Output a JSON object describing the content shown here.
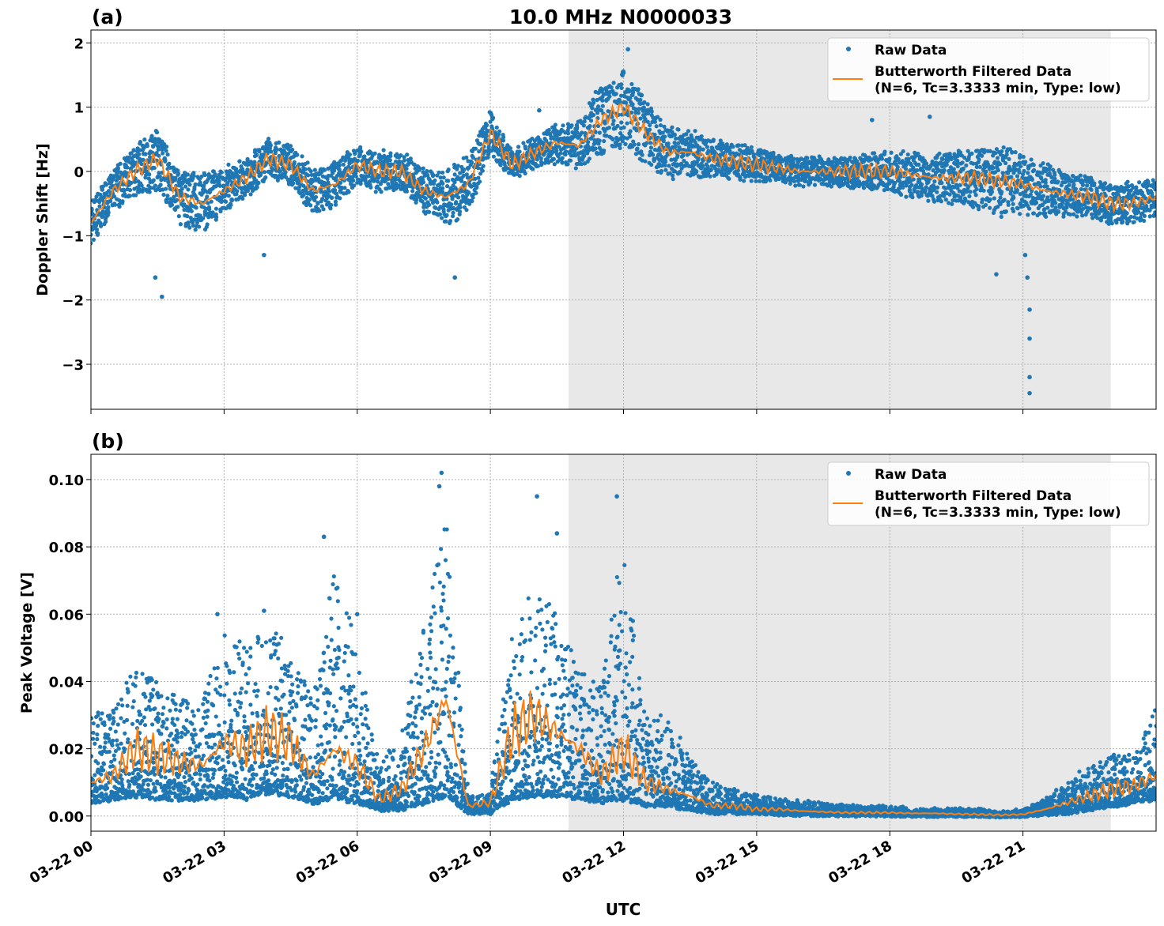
{
  "title": "10.0 MHz N0000033",
  "xlabel": "UTC",
  "x_ticks": [
    "03-22 00",
    "03-22 03",
    "03-22 06",
    "03-22 09",
    "03-22 12",
    "03-22 15",
    "03-22 18",
    "03-22 21"
  ],
  "x_tick_hours": [
    0,
    3,
    6,
    9,
    12,
    15,
    18,
    21
  ],
  "legend": {
    "raw": "Raw Data",
    "filtered_line1": "Butterworth Filtered Data",
    "filtered_line2": "(N=6, Tc=3.3333 min, Type: low)",
    "placement": "upper-right"
  },
  "colors": {
    "raw": "#1f77b4",
    "filtered": "#ff7f0e",
    "shade": "#e8e8e8"
  },
  "chart_data": [
    {
      "type": "scatter+line",
      "panel_label": "(a)",
      "ylabel": "Doppler Shift [Hz]",
      "xlim_hours": [
        0,
        24
      ],
      "ylim": [
        -3.7,
        2.2
      ],
      "y_ticks": [
        2,
        1,
        0,
        -1,
        -2,
        -3
      ],
      "y_tick_labels": [
        "2",
        "1",
        "0",
        "−1",
        "−2",
        "−3"
      ],
      "grid": true,
      "shaded_hours": [
        10.76,
        22.98
      ],
      "x_hours": [
        0,
        0.5,
        1,
        1.5,
        2,
        2.5,
        3,
        3.5,
        4,
        4.5,
        5,
        5.5,
        6,
        6.5,
        7,
        7.5,
        8,
        8.5,
        9,
        9.5,
        10,
        10.5,
        11,
        11.5,
        12,
        12.5,
        13,
        13.5,
        14,
        14.5,
        15,
        15.5,
        16,
        16.5,
        17,
        17.5,
        18,
        18.5,
        19,
        19.5,
        20,
        20.5,
        21,
        21.5,
        22,
        22.5,
        23,
        23.5,
        24
      ],
      "filtered": [
        -0.8,
        -0.3,
        0.0,
        0.2,
        -0.4,
        -0.5,
        -0.3,
        -0.1,
        0.2,
        0.1,
        -0.3,
        -0.2,
        0.1,
        0.0,
        0.0,
        -0.3,
        -0.4,
        -0.2,
        0.6,
        0.1,
        0.3,
        0.45,
        0.4,
        0.8,
        1.0,
        0.6,
        0.3,
        0.3,
        0.2,
        0.15,
        0.1,
        0.05,
        0.0,
        0.0,
        0.0,
        0.0,
        0.0,
        -0.05,
        -0.1,
        -0.1,
        -0.1,
        -0.15,
        -0.2,
        -0.3,
        -0.35,
        -0.4,
        -0.5,
        -0.5,
        -0.4
      ],
      "raw_halfwidth": [
        0.35,
        0.3,
        0.4,
        0.45,
        0.4,
        0.45,
        0.35,
        0.3,
        0.3,
        0.3,
        0.35,
        0.35,
        0.3,
        0.3,
        0.3,
        0.3,
        0.4,
        0.45,
        0.35,
        0.2,
        0.25,
        0.3,
        0.35,
        0.55,
        0.6,
        0.5,
        0.4,
        0.35,
        0.3,
        0.25,
        0.25,
        0.2,
        0.2,
        0.2,
        0.25,
        0.25,
        0.3,
        0.35,
        0.35,
        0.4,
        0.45,
        0.55,
        0.5,
        0.4,
        0.35,
        0.3,
        0.3,
        0.3,
        0.3
      ],
      "outliers": [
        [
          1.6,
          -1.95
        ],
        [
          1.45,
          -1.65
        ],
        [
          3.9,
          -1.3
        ],
        [
          8.2,
          -1.65
        ],
        [
          10.1,
          0.95
        ],
        [
          12.1,
          1.9
        ],
        [
          20.4,
          -1.6
        ],
        [
          21.05,
          -1.3
        ],
        [
          21.1,
          -1.65
        ],
        [
          21.15,
          -2.15
        ],
        [
          21.15,
          -2.6
        ],
        [
          21.15,
          -3.2
        ],
        [
          21.15,
          -3.45
        ],
        [
          21.2,
          1.15
        ],
        [
          18.9,
          0.85
        ],
        [
          17.6,
          0.8
        ]
      ]
    },
    {
      "type": "scatter+line",
      "panel_label": "(b)",
      "ylabel": "Peak Voltage [V]",
      "xlim_hours": [
        0,
        24
      ],
      "ylim": [
        -0.0045,
        0.1075
      ],
      "y_ticks": [
        0.1,
        0.08,
        0.06,
        0.04,
        0.02,
        0.0
      ],
      "y_tick_labels": [
        "0.10",
        "0.08",
        "0.06",
        "0.04",
        "0.02",
        "0.00"
      ],
      "grid": true,
      "shaded_hours": [
        10.76,
        22.98
      ],
      "x_hours": [
        0,
        0.5,
        1,
        1.5,
        2,
        2.5,
        3,
        3.5,
        4,
        4.5,
        5,
        5.5,
        6,
        6.5,
        7,
        7.5,
        8,
        8.5,
        9,
        9.5,
        10,
        10.5,
        11,
        11.5,
        12,
        12.5,
        13,
        13.5,
        14,
        14.5,
        15,
        15.5,
        16,
        16.5,
        17,
        17.5,
        18,
        18.5,
        19,
        19.5,
        20,
        20.5,
        21,
        21.5,
        22,
        22.5,
        23,
        23.5,
        24
      ],
      "filtered": [
        0.01,
        0.012,
        0.02,
        0.018,
        0.016,
        0.015,
        0.022,
        0.02,
        0.025,
        0.022,
        0.012,
        0.02,
        0.015,
        0.005,
        0.008,
        0.02,
        0.035,
        0.003,
        0.004,
        0.025,
        0.03,
        0.025,
        0.02,
        0.012,
        0.02,
        0.01,
        0.008,
        0.006,
        0.003,
        0.003,
        0.002,
        0.002,
        0.0015,
        0.0012,
        0.001,
        0.001,
        0.001,
        0.0008,
        0.0008,
        0.0006,
        0.0005,
        0.0003,
        0.0005,
        0.002,
        0.004,
        0.006,
        0.008,
        0.009,
        0.012
      ],
      "raw_low": [
        0.004,
        0.005,
        0.006,
        0.005,
        0.005,
        0.005,
        0.006,
        0.005,
        0.007,
        0.006,
        0.004,
        0.005,
        0.004,
        0.002,
        0.002,
        0.004,
        0.006,
        0.001,
        0.001,
        0.005,
        0.006,
        0.006,
        0.005,
        0.004,
        0.005,
        0.003,
        0.003,
        0.002,
        0.001,
        0.001,
        0.001,
        0.0005,
        0.0005,
        0.0004,
        0.0003,
        0.0003,
        0.0003,
        0.0002,
        0.0002,
        0.0002,
        0.0001,
        0.0,
        0.0001,
        0.0005,
        0.001,
        0.002,
        0.003,
        0.004,
        0.005
      ],
      "raw_high": [
        0.03,
        0.032,
        0.045,
        0.04,
        0.035,
        0.033,
        0.055,
        0.05,
        0.058,
        0.05,
        0.035,
        0.075,
        0.05,
        0.015,
        0.025,
        0.06,
        0.09,
        0.006,
        0.007,
        0.055,
        0.07,
        0.06,
        0.045,
        0.04,
        0.085,
        0.03,
        0.03,
        0.018,
        0.01,
        0.008,
        0.006,
        0.005,
        0.005,
        0.004,
        0.003,
        0.003,
        0.003,
        0.002,
        0.002,
        0.002,
        0.002,
        0.001,
        0.002,
        0.005,
        0.01,
        0.015,
        0.018,
        0.02,
        0.035
      ],
      "outliers": [
        [
          7.9,
          0.102
        ],
        [
          7.85,
          0.098
        ],
        [
          10.05,
          0.095
        ],
        [
          11.85,
          0.095
        ],
        [
          5.25,
          0.083
        ],
        [
          10.5,
          0.084
        ],
        [
          6.0,
          0.06
        ],
        [
          2.85,
          0.06
        ],
        [
          3.9,
          0.061
        ]
      ]
    }
  ]
}
